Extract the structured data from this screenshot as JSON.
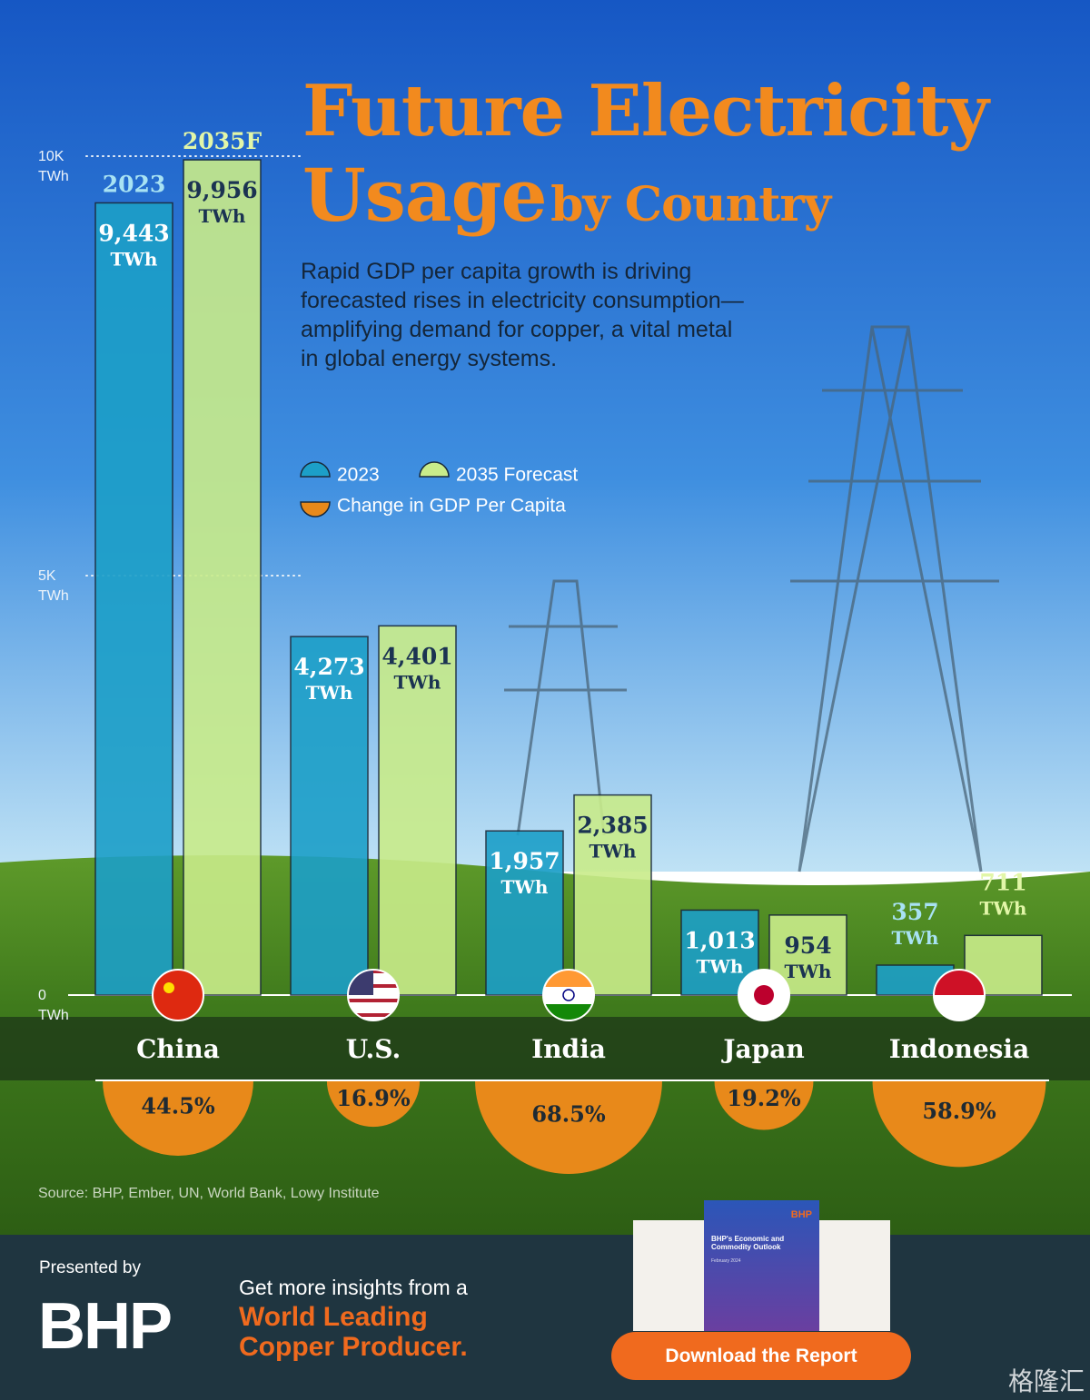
{
  "chart_data": {
    "type": "bar",
    "title": {
      "line1": "Future Electricity",
      "line2": "Usage",
      "line2_small": "by Country"
    },
    "subtitle": "Rapid GDP per capita growth is driving forecasted rises in electricity consumption—amplifying demand for copper, a vital metal in global energy systems.",
    "categories": [
      "China",
      "U.S.",
      "India",
      "Japan",
      "Indonesia"
    ],
    "unit": "TWh",
    "series": [
      {
        "name": "2023",
        "tag": "2023",
        "color": "#1c9fc8",
        "values": [
          9443,
          4273,
          1957,
          1013,
          357
        ],
        "value_labels": [
          "9,443",
          "4,273",
          "1,957",
          "1,013",
          "357"
        ]
      },
      {
        "name": "2035 Forecast",
        "tag": "2035F",
        "color": "#c9ec8a",
        "values": [
          9956,
          4401,
          2385,
          954,
          711
        ],
        "value_labels": [
          "9,956",
          "4,401",
          "2,385",
          "954",
          "711"
        ]
      }
    ],
    "gdp_change": {
      "name": "Change in GDP Per Capita",
      "color": "#e8891a",
      "values": [
        44.5,
        16.9,
        68.5,
        19.2,
        58.9
      ],
      "value_labels": [
        "44.5%",
        "16.9%",
        "68.5%",
        "19.2%",
        "58.9%"
      ]
    },
    "ylim": [
      0,
      10000
    ],
    "yticks": [
      {
        "value": 0,
        "label": "0 TWh"
      },
      {
        "value": 5000,
        "label": "5K TWh"
      },
      {
        "value": 10000,
        "label": "10K TWh"
      }
    ],
    "grid": true,
    "source": "Source: BHP, Ember, UN, World Bank, Lowy Institute",
    "footer": {
      "presented_by": "Presented by",
      "brand": "BHP",
      "cta": "Get more insights from a",
      "cta_highlight": "World Leading Copper Producer.",
      "button": "Download the Report",
      "report_brand": "BHP",
      "report_title": "BHP's Economic and Commodity Outlook",
      "report_date": "February 2024",
      "watermark": "格隆汇"
    }
  }
}
